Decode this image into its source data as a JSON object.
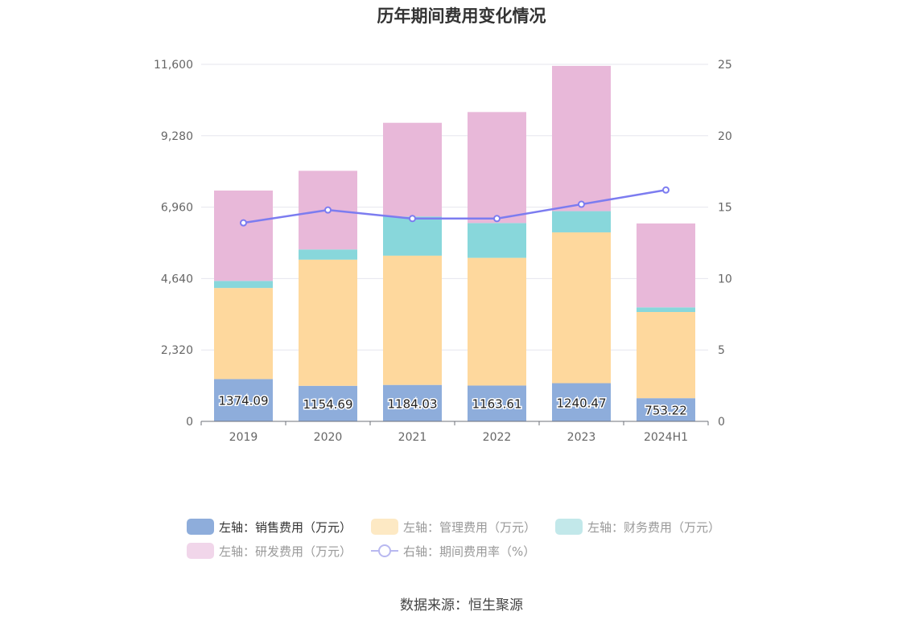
{
  "chart_data": {
    "type": "bar",
    "title": "历年期间费用变化情况",
    "categories": [
      "2019",
      "2020",
      "2021",
      "2022",
      "2023",
      "2024H1"
    ],
    "stacked": true,
    "left_axis": {
      "ticks": [
        "0",
        "2,320",
        "4,640",
        "6,960",
        "9,280",
        "11,600"
      ],
      "ylim": [
        0,
        11600
      ]
    },
    "right_axis": {
      "ticks": [
        "0",
        "5",
        "10",
        "15",
        "20",
        "25"
      ],
      "ylim": [
        0,
        25
      ]
    },
    "series": [
      {
        "name": "左轴：销售费用（万元）",
        "color": "#8eaddb",
        "values": [
          1374.09,
          1154.69,
          1184.03,
          1163.61,
          1240.47,
          753.22
        ],
        "labels": [
          "1374.09",
          "1154.69",
          "1184.03",
          "1163.61",
          "1240.47",
          "753.22"
        ]
      },
      {
        "name": "左轴：管理费用（万元）",
        "color": "#fed89d",
        "values": [
          2960,
          4100,
          4200,
          4150,
          4900,
          2800
        ]
      },
      {
        "name": "左轴：财务费用（万元）",
        "color": "#88d7db",
        "values": [
          230,
          330,
          1270,
          1130,
          690,
          150
        ]
      },
      {
        "name": "左轴：研发费用（万元）",
        "color": "#e8b8d9",
        "values": [
          2936,
          2556,
          3046,
          3606,
          4720,
          2727
        ]
      },
      {
        "name": "右轴：期间费用率（%）",
        "type": "line",
        "axis": "right",
        "color": "#7c7cf0",
        "values": [
          13.9,
          14.8,
          14.2,
          14.2,
          15.2,
          16.2
        ]
      }
    ],
    "legend_position": "bottom"
  },
  "source": "数据来源：恒生聚源"
}
